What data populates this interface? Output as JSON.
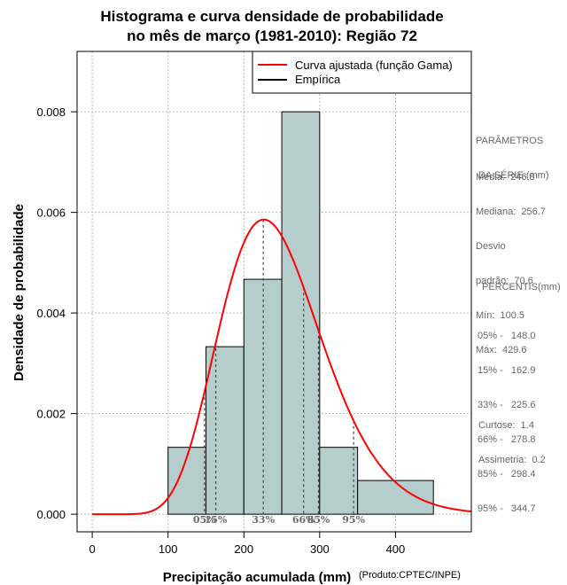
{
  "chart_data": {
    "type": "bar",
    "title_lines": [
      "Histograma e curva densidade de probabilidade",
      "no mês de março (1981-2010): Região 72"
    ],
    "xlabel": "Precipitação acumulada (mm)",
    "ylabel": "Densidade de probabilidade",
    "xlim": [
      -20,
      500
    ],
    "ylim": [
      -0.00035,
      0.0092
    ],
    "xticks": [
      0,
      100,
      200,
      300,
      400
    ],
    "yticks": [
      0.0,
      0.002,
      0.004,
      0.006,
      0.008
    ],
    "ytick_labels": [
      "0.000",
      "0.002",
      "0.004",
      "0.006",
      "0.008"
    ],
    "grid": true,
    "bins": [
      {
        "x0": 100,
        "x1": 150,
        "density": 0.00133
      },
      {
        "x0": 150,
        "x1": 200,
        "density": 0.00333
      },
      {
        "x0": 200,
        "x1": 250,
        "density": 0.00467
      },
      {
        "x0": 250,
        "x1": 300,
        "density": 0.008
      },
      {
        "x0": 300,
        "x1": 350,
        "density": 0.00133
      },
      {
        "x0": 350,
        "x1": 450,
        "density": 0.00067
      }
    ],
    "bar_color": "#b5cecd",
    "curve": {
      "name": "Curva ajustada (função Gama)",
      "color": "#ff0000",
      "shape": 12.2,
      "scale": 20.2
    },
    "legend": [
      {
        "label": "Curva ajustada (função Gama)",
        "color": "#ff0000"
      },
      {
        "label": "Empírica",
        "color": "#000000"
      }
    ],
    "legend_position": "top-right",
    "percentile_markers": [
      {
        "label": "05%",
        "value": 148.0
      },
      {
        "label": "15%",
        "value": 162.9
      },
      {
        "label": "33%",
        "value": 225.6
      },
      {
        "label": "66%",
        "value": 278.8
      },
      {
        "label": "85%",
        "value": 298.4
      },
      {
        "label": "95%",
        "value": 344.7
      }
    ]
  },
  "side_panel": {
    "params_title_1": "PARÂMETROS",
    "params_title_2": " DA SÉRIE (mm)",
    "media": "Média:  246.8",
    "mediana": "Mediana:  256.7",
    "desvio_1": "Desvio",
    "desvio_2": "padrão:  70.6",
    "min": "Mín:  100.5",
    "max": "Máx:  429.6",
    "percentis_title": "PERCENTIS(mm)",
    "p05": "05% -   148.0",
    "p15": "15% -   162.9",
    "p33": "33% -   225.6",
    "p66": "66% -   278.8",
    "p85": "85% -   298.4",
    "p95": "95% -   344.7",
    "curtose": "Curtose:  1.4",
    "assimetria": "Assimetria:  0.2"
  },
  "credit": "(Produto:CPTEC/INPE)"
}
